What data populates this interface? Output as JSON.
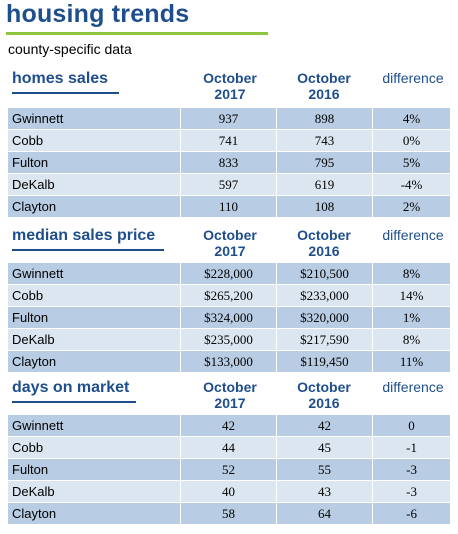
{
  "title": "housing trends",
  "subtitle": "county-specific data",
  "columns": {
    "col1_line1": "October",
    "col1_line2": "2017",
    "col2_line1": "October",
    "col2_line2": "2016",
    "diff": "difference"
  },
  "sections": [
    {
      "title": "homes sales",
      "rows": [
        {
          "county": "Gwinnett",
          "v2017": "937",
          "v2016": "898",
          "diff": "4%"
        },
        {
          "county": "Cobb",
          "v2017": "741",
          "v2016": "743",
          "diff": "0%"
        },
        {
          "county": "Fulton",
          "v2017": "833",
          "v2016": "795",
          "diff": "5%"
        },
        {
          "county": "DeKalb",
          "v2017": "597",
          "v2016": "619",
          "diff": "-4%"
        },
        {
          "county": "Clayton",
          "v2017": "110",
          "v2016": "108",
          "diff": "2%"
        }
      ]
    },
    {
      "title": "median sales price",
      "rows": [
        {
          "county": "Gwinnett",
          "v2017": "$228,000",
          "v2016": "$210,500",
          "diff": "8%"
        },
        {
          "county": "Cobb",
          "v2017": "$265,200",
          "v2016": "$233,000",
          "diff": "14%"
        },
        {
          "county": "Fulton",
          "v2017": "$324,000",
          "v2016": "$320,000",
          "diff": "1%"
        },
        {
          "county": "DeKalb",
          "v2017": "$235,000",
          "v2016": "$217,590",
          "diff": "8%"
        },
        {
          "county": "Clayton",
          "v2017": "$133,000",
          "v2016": "$119,450",
          "diff": "11%"
        }
      ]
    },
    {
      "title": "days on market",
      "rows": [
        {
          "county": "Gwinnett",
          "v2017": "42",
          "v2016": "42",
          "diff": "0"
        },
        {
          "county": "Cobb",
          "v2017": "44",
          "v2016": "45",
          "diff": "-1"
        },
        {
          "county": "Fulton",
          "v2017": "52",
          "v2016": "55",
          "diff": "-3"
        },
        {
          "county": "DeKalb",
          "v2017": "40",
          "v2016": "43",
          "diff": "-3"
        },
        {
          "county": "Clayton",
          "v2017": "58",
          "v2016": "64",
          "diff": "-6"
        }
      ]
    }
  ]
}
